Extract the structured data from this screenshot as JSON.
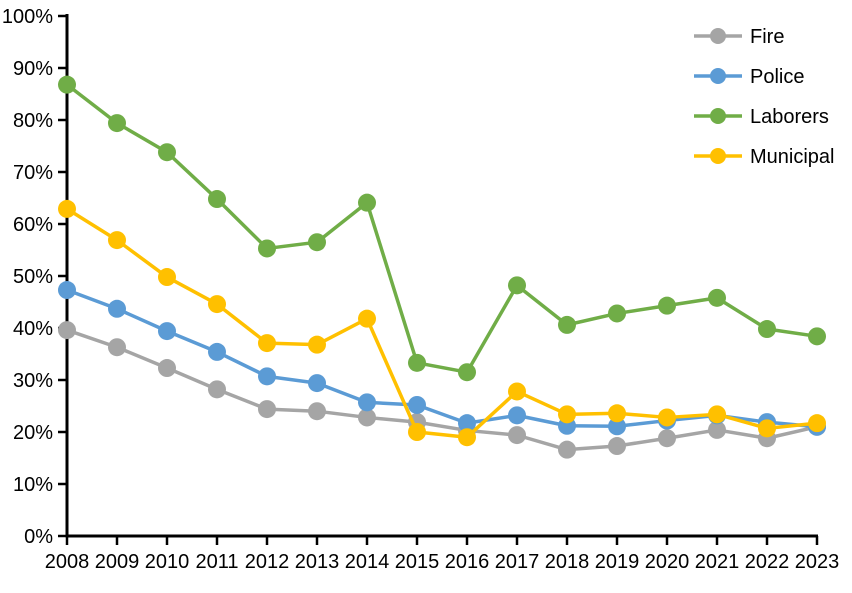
{
  "chart_data": {
    "type": "line",
    "title": "",
    "xlabel": "",
    "ylabel": "",
    "categories": [
      "2008",
      "2009",
      "2010",
      "2011",
      "2012",
      "2013",
      "2014",
      "2015",
      "2016",
      "2017",
      "2018",
      "2019",
      "2020",
      "2021",
      "2022",
      "2023"
    ],
    "series": [
      {
        "name": "Fire",
        "color": "#A5A5A5",
        "values": [
          39.6,
          36.3,
          32.3,
          28.2,
          24.4,
          24.0,
          22.8,
          21.9,
          20.3,
          19.4,
          16.6,
          17.3,
          18.8,
          20.4,
          18.8,
          21.0
        ]
      },
      {
        "name": "Police",
        "color": "#5B9BD5",
        "values": [
          47.3,
          43.7,
          39.4,
          35.4,
          30.7,
          29.4,
          25.7,
          25.2,
          21.7,
          23.2,
          21.2,
          21.1,
          22.2,
          23.2,
          21.9,
          21.0
        ]
      },
      {
        "name": "Laborers",
        "color": "#70AD47",
        "values": [
          86.8,
          79.4,
          73.8,
          64.8,
          55.3,
          56.5,
          64.1,
          33.3,
          31.5,
          48.2,
          40.6,
          42.8,
          44.3,
          45.8,
          39.8,
          38.4
        ]
      },
      {
        "name": "Municipal",
        "color": "#FFC000",
        "values": [
          62.9,
          56.9,
          49.8,
          44.6,
          37.1,
          36.8,
          41.8,
          20.0,
          19.0,
          27.8,
          23.4,
          23.6,
          22.8,
          23.4,
          20.7,
          21.7
        ]
      }
    ],
    "ylim": [
      0,
      100
    ],
    "y_tick_labels": [
      "0%",
      "10%",
      "20%",
      "30%",
      "40%",
      "50%",
      "60%",
      "70%",
      "80%",
      "90%",
      "100%"
    ],
    "legend_position": "top-right",
    "grid": false,
    "axis_color": "#000000",
    "background_color": "#FFFFFF",
    "marker_style": "circle"
  }
}
